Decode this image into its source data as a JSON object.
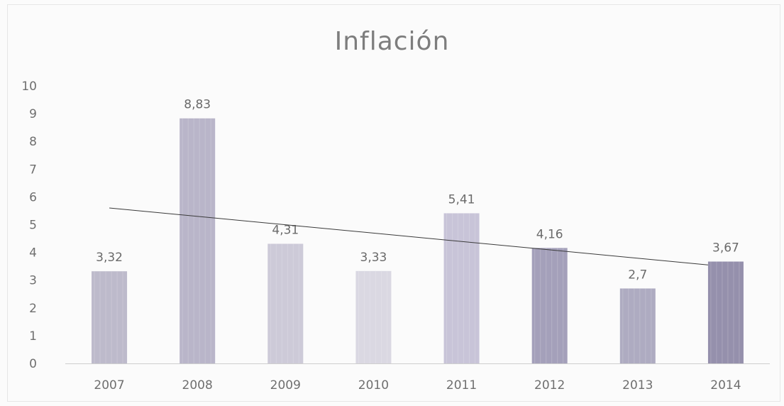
{
  "chart_data": {
    "type": "bar",
    "title": "Inflación",
    "categories": [
      "2007",
      "2008",
      "2009",
      "2010",
      "2011",
      "2012",
      "2013",
      "2014"
    ],
    "values": [
      3.32,
      8.83,
      4.31,
      3.33,
      5.41,
      4.16,
      2.7,
      3.67
    ],
    "data_labels": [
      "3,32",
      "8,83",
      "4,31",
      "3,33",
      "5,41",
      "4,16",
      "2,7",
      "3,67"
    ],
    "y_ticks": [
      "0",
      "1",
      "2",
      "3",
      "4",
      "5",
      "6",
      "7",
      "8",
      "9",
      "10"
    ],
    "ylim": [
      0,
      10
    ],
    "grid": false,
    "trendline": {
      "type": "linear",
      "from_category": "2007",
      "to_category": "2014",
      "start_value": 5.6,
      "end_value": 3.55
    },
    "legend": "none"
  },
  "colors": {
    "bars": [
      "#b9b6c8",
      "#b5b1c6",
      "#cac7d6",
      "#d8d6e0",
      "#c5c1d6",
      "#9f9bb6",
      "#aaa6be",
      "#8f8aa8"
    ],
    "trendline": "#3a3a3a",
    "axis": "#cfcfcf",
    "text": "#6f6f6f"
  }
}
